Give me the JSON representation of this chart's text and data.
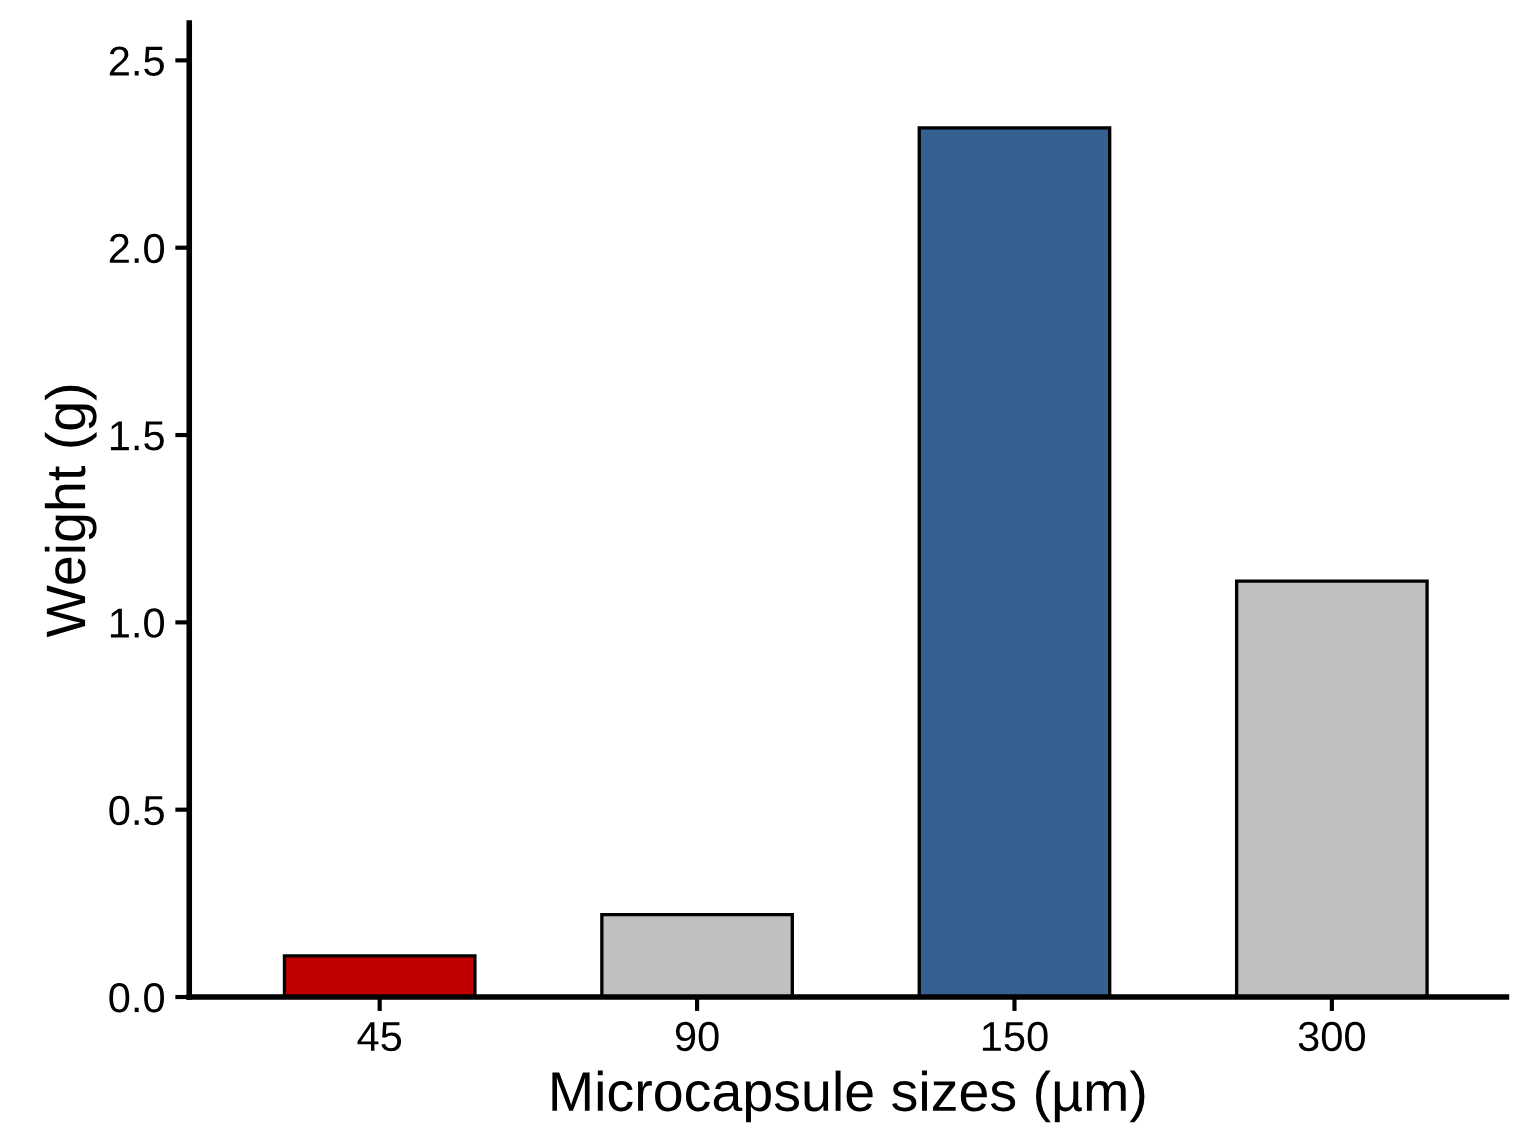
{
  "chart_data": {
    "type": "bar",
    "xlabel": "Microcapsule sizes (µm)",
    "ylabel": "Weight (g)",
    "categories": [
      "45",
      "90",
      "150",
      "300"
    ],
    "values": [
      0.11,
      0.22,
      2.32,
      1.11
    ],
    "colors": [
      "#c00000",
      "#c0c0c0",
      "#35608f",
      "#c0c0c0"
    ],
    "ylim": [
      0,
      2.6
    ],
    "yticks": [
      {
        "value": 0,
        "label": "0.0"
      },
      {
        "value": 0.5,
        "label": "0.5"
      },
      {
        "value": 1,
        "label": "1.0"
      },
      {
        "value": 1.5,
        "label": "1.5"
      },
      {
        "value": 2,
        "label": "2.0"
      },
      {
        "value": 2.5,
        "label": "2.5"
      }
    ],
    "grid": false
  }
}
